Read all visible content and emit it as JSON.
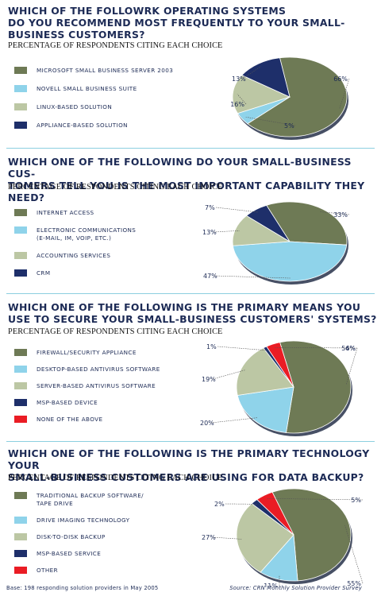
{
  "colors": {
    "olive": "#6e7a55",
    "cyan": "#8fd3ea",
    "sage": "#bcc7a4",
    "navy": "#1e2f6a",
    "red": "#ea1c24",
    "title": "#1c2a55",
    "divider": "#8ccfe0"
  },
  "chart_data": [
    {
      "type": "pie",
      "title": "Which of the following network operating systems do you recommend most frequently to your small-business customers?",
      "subtitle": "Percentage of respondents citing each choice",
      "categories": [
        "Microsoft Small Business Server 2003",
        "Novell Small Business Suite",
        "Linux-based solution",
        "Appliance-based solution"
      ],
      "values": [
        66,
        5,
        16,
        13
      ],
      "value_labels": [
        "66%",
        "5%",
        "16%",
        "13%"
      ],
      "colors": [
        "#6e7a55",
        "#8fd3ea",
        "#bcc7a4",
        "#1e2f6a"
      ]
    },
    {
      "type": "pie",
      "title": "Which one of the following do your small-business customers tell you is the most important capability they need?",
      "subtitle": "Percentage of respondents citing each choice",
      "categories": [
        "Internet access",
        "Electronic communications (e-mail, IM, VoIP, etc.)",
        "Accounting services",
        "CRM"
      ],
      "values": [
        33,
        47,
        13,
        7
      ],
      "value_labels": [
        "33%",
        "47%",
        "13%",
        "7%"
      ],
      "colors": [
        "#6e7a55",
        "#8fd3ea",
        "#bcc7a4",
        "#1e2f6a"
      ]
    },
    {
      "type": "pie",
      "title": "Which one of the following is the primary means you use to secure your small-business customers' systems?",
      "subtitle": "Percentage of respondents citing each choice",
      "categories": [
        "Firewall/security appliance",
        "Desktop-based antivirus software",
        "Server-based antivirus software",
        "MSP-based device",
        "None of the above"
      ],
      "values": [
        56,
        20,
        19,
        1,
        4
      ],
      "value_labels": [
        "56%",
        "20%",
        "19%",
        "1%",
        "4%"
      ],
      "colors": [
        "#6e7a55",
        "#8fd3ea",
        "#bcc7a4",
        "#1e2f6a",
        "#ea1c24"
      ]
    },
    {
      "type": "pie",
      "title": "Which one of the following is the primary technology your small-business customers are using for data backup?",
      "subtitle": "Percentage of respondents citing each choice",
      "categories": [
        "Traditional backup software/tape drive",
        "Drive imaging technology",
        "Disk-to-disk backup",
        "MSP-based service",
        "Other"
      ],
      "values": [
        55,
        11,
        27,
        2,
        5
      ],
      "value_labels": [
        "55%",
        "11%",
        "27%",
        "2%",
        "5%"
      ],
      "colors": [
        "#6e7a55",
        "#8fd3ea",
        "#bcc7a4",
        "#1e2f6a",
        "#ea1c24"
      ]
    }
  ],
  "panels": [
    {
      "title": "WHICH OF THE FOLLOWRK OPERATING SYSTEMS\nDO YOU RECOMMEND MOST FREQUENTLY TO YOUR SMALL-\nBUSINESS CUSTOMERS?",
      "subtitle": "PERCENTAGE OF RESPONDENTS CITING EACH CHOICE",
      "legend": [
        "MICROSOFT SMALL BUSINESS SERVER 2003",
        "NOVELL SMALL BUSINESS SUITE",
        "LINUX-BASED SOLUTION",
        "APPLIANCE-BASED SOLUTION"
      ]
    },
    {
      "title": "WHICH ONE OF THE FOLLOWING DO YOUR SMALL-BUSINESS CUS-\nTOMERS TELL YOU IS THE MOST IMPORTANT CAPABILITY THEY NEED?",
      "subtitle": "PERCENTAGE OF RESPONDENTS CITING EACH CHOICE",
      "legend": [
        "INTERNET ACCESS",
        "ELECTRONIC COMMUNICATIONS\n(E-MAIL, IM, VOIP, ETC.)",
        "ACCOUNTING SERVICES",
        "CRM"
      ]
    },
    {
      "title": "WHICH ONE OF THE FOLLOWING IS THE PRIMARY MEANS YOU\nUSE TO SECURE YOUR SMALL-BUSINESS CUSTOMERS' SYSTEMS?",
      "subtitle": "PERCENTAGE OF RESPONDENTS CITING EACH CHOICE",
      "legend": [
        "FIREWALL/SECURITY APPLIANCE",
        "DESKTOP-BASED ANTIVIRUS SOFTWARE",
        "SERVER-BASED ANTIVIRUS SOFTWARE",
        "MSP-BASED DEVICE",
        "NONE OF THE ABOVE"
      ]
    },
    {
      "title": "WHICH ONE OF THE FOLLOWING IS THE PRIMARY TECHNOLOGY YOUR\nSMALL-BUSINESS CUSTOMERS ARE USING FOR DATA BACKUP?",
      "subtitle": "PERCENTAGE OF RESPONDENTS CITING EACH CHOICE",
      "legend": [
        "TRADITIONAL BACKUP SOFTWARE/\nTAPE DRIVE",
        "DRIVE IMAGING TECHNOLOGY",
        "DISK-TO-DISK BACKUP",
        "MSP-BASED SERVICE",
        "OTHER"
      ]
    }
  ],
  "footer": {
    "base": "Base: 198 responding solution providers in May 2005",
    "source": "Source: CRN Monthly Solution Provider Survey"
  }
}
